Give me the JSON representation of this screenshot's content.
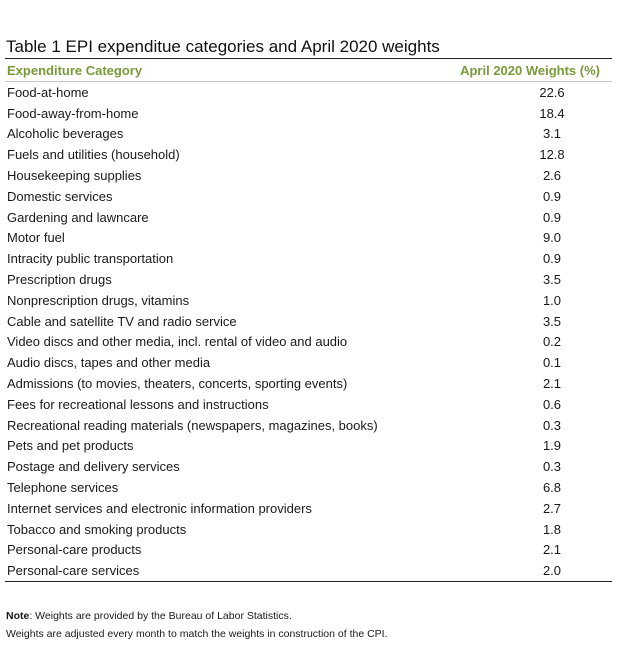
{
  "table": {
    "title": "Table 1 EPI expenditue categories and April 2020 weights",
    "header": {
      "category": "Expenditure Category",
      "weights": "April 2020 Weights (%)"
    },
    "rows": [
      {
        "category": "Food-at-home",
        "weight": "22.6"
      },
      {
        "category": "Food-away-from-home",
        "weight": "18.4"
      },
      {
        "category": "Alcoholic beverages",
        "weight": "3.1"
      },
      {
        "category": "Fuels and utilities (household)",
        "weight": "12.8"
      },
      {
        "category": "Housekeeping supplies",
        "weight": "2.6"
      },
      {
        "category": "Domestic services",
        "weight": "0.9"
      },
      {
        "category": "Gardening and lawncare",
        "weight": "0.9"
      },
      {
        "category": "Motor fuel",
        "weight": "9.0"
      },
      {
        "category": "Intracity public transportation",
        "weight": "0.9"
      },
      {
        "category": "Prescription drugs",
        "weight": "3.5"
      },
      {
        "category": "Nonprescription drugs, vitamins",
        "weight": "1.0"
      },
      {
        "category": "Cable and satellite TV and radio service",
        "weight": "3.5"
      },
      {
        "category": "Video discs and other media, incl. rental of video and audio",
        "weight": "0.2"
      },
      {
        "category": "Audio discs, tapes and other media",
        "weight": "0.1"
      },
      {
        "category": "Admissions (to movies, theaters, concerts, sporting events)",
        "weight": "2.1"
      },
      {
        "category": "Fees for recreational lessons and instructions",
        "weight": "0.6"
      },
      {
        "category": "Recreational reading materials (newspapers, magazines, books)",
        "weight": "0.3"
      },
      {
        "category": "Pets and pet products",
        "weight": "1.9"
      },
      {
        "category": "Postage and delivery services",
        "weight": "0.3"
      },
      {
        "category": "Telephone services",
        "weight": "6.8"
      },
      {
        "category": "Internet services and electronic information providers",
        "weight": "2.7"
      },
      {
        "category": "Tobacco and smoking products",
        "weight": "1.8"
      },
      {
        "category": "Personal-care products",
        "weight": "2.1"
      },
      {
        "category": "Personal-care services",
        "weight": "2.0"
      }
    ]
  },
  "notes": {
    "label": "Note",
    "line1": ": Weights are provided by the Bureau of Labor Statistics.",
    "line2": "Weights are adjusted every month to match the weights in construction of the CPI."
  }
}
